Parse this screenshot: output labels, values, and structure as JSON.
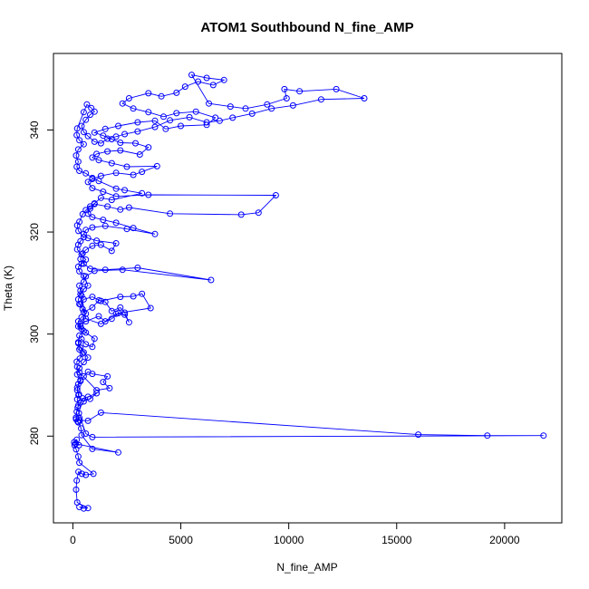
{
  "chart_data": {
    "type": "line",
    "title": "ATOM1 Southbound N_fine_AMP",
    "xlabel": "N_fine_AMP",
    "ylabel": "Theta (K)",
    "xlim": [
      -900,
      22650
    ],
    "ylim": [
      263,
      355
    ],
    "xticks": [
      0,
      5000,
      10000,
      15000,
      20000
    ],
    "yticks": [
      280,
      300,
      320,
      340
    ],
    "grid": false,
    "series": [
      {
        "color": "#0000ff",
        "marker": "open-circle",
        "points": [
          [
            500,
            265.8
          ],
          [
            300,
            266.1
          ],
          [
            700,
            265.9
          ],
          [
            200,
            267.0
          ],
          [
            150,
            269.5
          ],
          [
            180,
            271.3
          ],
          [
            260,
            273.0
          ],
          [
            420,
            272.6
          ],
          [
            600,
            272.4
          ],
          [
            950,
            272.6
          ],
          [
            300,
            274.8
          ],
          [
            250,
            276.0
          ],
          [
            150,
            277.4
          ],
          [
            80,
            278.2
          ],
          [
            60,
            278.8
          ],
          [
            180,
            279.3
          ],
          [
            280,
            278.2
          ],
          [
            120,
            278.5
          ],
          [
            2100,
            276.8
          ],
          [
            900,
            277.5
          ],
          [
            400,
            280.2
          ],
          [
            380,
            281.5
          ],
          [
            250,
            282.7
          ],
          [
            150,
            283.3
          ],
          [
            320,
            283.1
          ],
          [
            700,
            283.0
          ],
          [
            1300,
            284.6
          ],
          [
            16000,
            280.3
          ],
          [
            19200,
            280.1
          ],
          [
            21800,
            280.1
          ],
          [
            900,
            279.8
          ],
          [
            600,
            280.5
          ],
          [
            280,
            284.5
          ],
          [
            220,
            285.6
          ],
          [
            350,
            286.6
          ],
          [
            450,
            287.4
          ],
          [
            700,
            287.7
          ],
          [
            1100,
            288.4
          ],
          [
            800,
            287.3
          ],
          [
            500,
            286.8
          ],
          [
            260,
            288.0
          ],
          [
            200,
            289.5
          ],
          [
            350,
            290.8
          ],
          [
            500,
            291.7
          ],
          [
            700,
            292.6
          ],
          [
            900,
            292.2
          ],
          [
            1600,
            291.7
          ],
          [
            1400,
            290.6
          ],
          [
            1700,
            289.4
          ],
          [
            1100,
            289.0
          ],
          [
            300,
            292.5
          ],
          [
            200,
            293.6
          ],
          [
            180,
            294.6
          ],
          [
            320,
            295.2
          ],
          [
            450,
            296.2
          ],
          [
            300,
            297.0
          ],
          [
            250,
            298.2
          ],
          [
            400,
            299.0
          ],
          [
            600,
            298.0
          ],
          [
            900,
            297.5
          ],
          [
            1000,
            299.1
          ],
          [
            600,
            300.3
          ],
          [
            400,
            301.0
          ],
          [
            250,
            301.5
          ],
          [
            350,
            302.0
          ],
          [
            600,
            302.5
          ],
          [
            1200,
            303.5
          ],
          [
            1500,
            302.5
          ],
          [
            2000,
            304.0
          ],
          [
            2400,
            303.8
          ],
          [
            2600,
            302.3
          ],
          [
            2400,
            304.2
          ],
          [
            2200,
            305.2
          ],
          [
            1800,
            304.5
          ],
          [
            1500,
            306.3
          ],
          [
            1200,
            306.6
          ],
          [
            900,
            305.2
          ],
          [
            500,
            304.3
          ],
          [
            350,
            305.8
          ],
          [
            500,
            306.8
          ],
          [
            900,
            307.3
          ],
          [
            1300,
            306.5
          ],
          [
            2200,
            307.3
          ],
          [
            2800,
            307.4
          ],
          [
            3200,
            307.9
          ],
          [
            3600,
            305.1
          ],
          [
            2100,
            304.1
          ],
          [
            1800,
            303.0
          ],
          [
            1300,
            302.0
          ],
          [
            600,
            303.0
          ],
          [
            400,
            307.5
          ],
          [
            350,
            308.5
          ],
          [
            300,
            309.5
          ],
          [
            500,
            310.2
          ],
          [
            600,
            311.3
          ],
          [
            1000,
            312.4
          ],
          [
            2300,
            312.6
          ],
          [
            6400,
            310.6
          ],
          [
            3000,
            313.0
          ],
          [
            1500,
            312.6
          ],
          [
            800,
            312.8
          ],
          [
            500,
            313.8
          ],
          [
            350,
            314.7
          ],
          [
            450,
            315.8
          ],
          [
            600,
            316.5
          ],
          [
            900,
            317.3
          ],
          [
            1300,
            317.5
          ],
          [
            1800,
            316.3
          ],
          [
            2000,
            317.8
          ],
          [
            1100,
            318.3
          ],
          [
            700,
            318.8
          ],
          [
            500,
            319.6
          ],
          [
            600,
            320.4
          ],
          [
            900,
            320.9
          ],
          [
            1500,
            321.2
          ],
          [
            2500,
            320.6
          ],
          [
            3800,
            319.6
          ],
          [
            2800,
            320.8
          ],
          [
            2000,
            321.8
          ],
          [
            1400,
            322.4
          ],
          [
            900,
            322.9
          ],
          [
            700,
            323.6
          ],
          [
            800,
            324.6
          ],
          [
            1000,
            325.5
          ],
          [
            1600,
            325.0
          ],
          [
            2200,
            324.4
          ],
          [
            2600,
            324.8
          ],
          [
            4500,
            323.6
          ],
          [
            7800,
            323.4
          ],
          [
            8600,
            323.8
          ],
          [
            9400,
            327.2
          ],
          [
            3500,
            327.3
          ],
          [
            2000,
            327.0
          ],
          [
            1400,
            327.9
          ],
          [
            900,
            328.6
          ],
          [
            700,
            329.8
          ],
          [
            900,
            330.4
          ],
          [
            1300,
            331.0
          ],
          [
            2000,
            331.6
          ],
          [
            2800,
            331.2
          ],
          [
            3200,
            331.8
          ],
          [
            3900,
            332.9
          ],
          [
            2500,
            332.8
          ],
          [
            1800,
            333.5
          ],
          [
            1200,
            334.1
          ],
          [
            900,
            334.6
          ],
          [
            1100,
            335.3
          ],
          [
            1600,
            335.8
          ],
          [
            2200,
            336.0
          ],
          [
            3100,
            335.2
          ],
          [
            3500,
            336.6
          ],
          [
            2900,
            337.4
          ],
          [
            2200,
            337.5
          ],
          [
            1800,
            338.2
          ],
          [
            1400,
            338.9
          ],
          [
            1000,
            339.5
          ],
          [
            1500,
            340.2
          ],
          [
            2100,
            340.8
          ],
          [
            3000,
            341.5
          ],
          [
            3800,
            341.8
          ],
          [
            4300,
            340.2
          ],
          [
            5000,
            340.8
          ],
          [
            6200,
            341.0
          ],
          [
            6600,
            342.4
          ],
          [
            5700,
            343.6
          ],
          [
            4800,
            343.3
          ],
          [
            4200,
            342.6
          ],
          [
            3500,
            343.5
          ],
          [
            2800,
            344.2
          ],
          [
            2300,
            345.2
          ],
          [
            2600,
            346.2
          ],
          [
            3500,
            347.2
          ],
          [
            4100,
            346.6
          ],
          [
            4800,
            347.3
          ],
          [
            5200,
            348.5
          ],
          [
            5800,
            349.5
          ],
          [
            6500,
            348.8
          ],
          [
            7000,
            349.8
          ],
          [
            6200,
            350.2
          ],
          [
            5500,
            350.8
          ],
          [
            6300,
            345.2
          ],
          [
            7300,
            344.6
          ],
          [
            8000,
            344.2
          ],
          [
            9000,
            345.0
          ],
          [
            9900,
            346.2
          ],
          [
            9800,
            348.0
          ],
          [
            10500,
            347.6
          ],
          [
            12200,
            348.0
          ],
          [
            13500,
            346.2
          ],
          [
            11500,
            346.0
          ],
          [
            10200,
            344.8
          ],
          [
            9200,
            344.2
          ],
          [
            8300,
            343.2
          ],
          [
            7400,
            342.4
          ],
          [
            6800,
            341.8
          ],
          [
            6200,
            341.5
          ],
          [
            5400,
            342.5
          ],
          [
            4500,
            341.9
          ],
          [
            3800,
            340.6
          ],
          [
            3000,
            339.7
          ],
          [
            2400,
            339.2
          ],
          [
            2000,
            338.7
          ],
          [
            1600,
            338.3
          ],
          [
            1300,
            337.4
          ],
          [
            1000,
            337.7
          ],
          [
            700,
            338.8
          ],
          [
            500,
            339.6
          ],
          [
            400,
            340.8
          ],
          [
            600,
            342.0
          ],
          [
            800,
            343.0
          ],
          [
            1000,
            343.6
          ],
          [
            850,
            344.3
          ],
          [
            650,
            345.0
          ],
          [
            500,
            343.5
          ],
          [
            200,
            340.3
          ],
          [
            180,
            339.0
          ],
          [
            300,
            338.0
          ],
          [
            500,
            337.2
          ],
          [
            250,
            336.2
          ],
          [
            150,
            335.0
          ],
          [
            250,
            333.8
          ],
          [
            180,
            332.8
          ],
          [
            300,
            332.0
          ],
          [
            600,
            331.5
          ],
          [
            900,
            330.6
          ],
          [
            1200,
            330.0
          ],
          [
            2000,
            328.5
          ],
          [
            2400,
            328.2
          ],
          [
            3200,
            327.6
          ],
          [
            1800,
            326.3
          ],
          [
            1300,
            326.7
          ],
          [
            1000,
            325.6
          ],
          [
            800,
            325.0
          ],
          [
            600,
            324.3
          ],
          [
            450,
            323.5
          ],
          [
            300,
            322.0
          ],
          [
            200,
            321.3
          ],
          [
            260,
            320.2
          ],
          [
            500,
            319.0
          ],
          [
            350,
            318.2
          ],
          [
            250,
            317.5
          ],
          [
            200,
            316.6
          ],
          [
            400,
            315.6
          ],
          [
            600,
            314.6
          ],
          [
            400,
            313.8
          ],
          [
            250,
            313.2
          ],
          [
            300,
            312.3
          ],
          [
            500,
            311.4
          ],
          [
            700,
            309.5
          ],
          [
            500,
            308.8
          ],
          [
            350,
            307.8
          ],
          [
            250,
            306.8
          ],
          [
            300,
            305.9
          ],
          [
            450,
            304.9
          ],
          [
            600,
            304.0
          ],
          [
            400,
            303.3
          ],
          [
            250,
            302.5
          ],
          [
            350,
            301.5
          ],
          [
            500,
            300.6
          ],
          [
            300,
            299.7
          ],
          [
            250,
            298.4
          ],
          [
            350,
            297.3
          ],
          [
            500,
            296.4
          ],
          [
            700,
            295.4
          ],
          [
            500,
            294.5
          ],
          [
            300,
            293.3
          ],
          [
            200,
            292.1
          ],
          [
            350,
            291.0
          ],
          [
            250,
            290.2
          ],
          [
            200,
            289.0
          ],
          [
            280,
            288.2
          ],
          [
            200,
            287.2
          ],
          [
            250,
            286.0
          ],
          [
            180,
            284.8
          ],
          [
            140,
            283.6
          ],
          [
            220,
            282.9
          ],
          [
            300,
            283.6
          ]
        ]
      }
    ]
  }
}
